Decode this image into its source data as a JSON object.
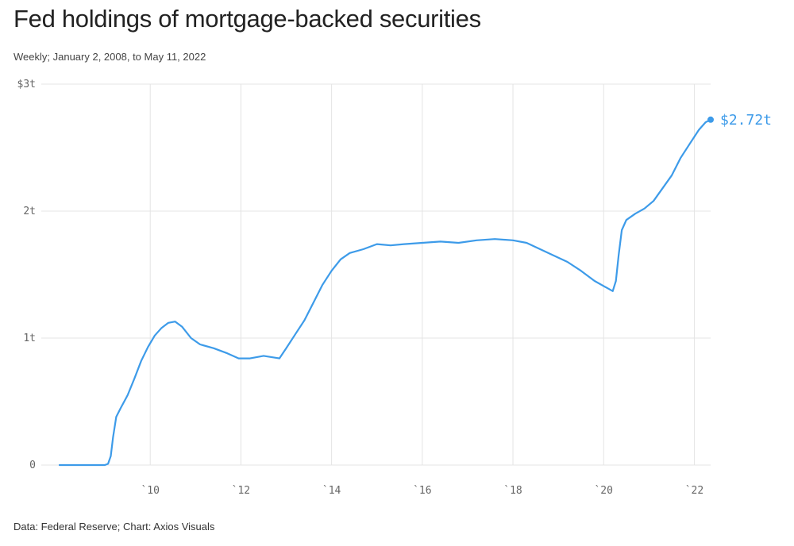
{
  "header": {
    "title": "Fed holdings of mortgage-backed securities",
    "subtitle": "Weekly; January 2, 2008, to May 11, 2022"
  },
  "footer": {
    "source": "Data: Federal Reserve; Chart: Axios Visuals"
  },
  "colors": {
    "line": "#3d9be9",
    "grid": "#e4e4e4",
    "text": "#222222"
  },
  "chart_data": {
    "type": "line",
    "title": "Fed holdings of mortgage-backed securities",
    "subtitle": "Weekly; January 2, 2008, to May 11, 2022",
    "xlabel": "",
    "ylabel": "",
    "units": "trillions of dollars",
    "xlim": [
      2008,
      2022.36
    ],
    "ylim": [
      0,
      3
    ],
    "grid": true,
    "legend": "none",
    "y_ticks": [
      {
        "value": 0,
        "label": "0"
      },
      {
        "value": 1,
        "label": "1t"
      },
      {
        "value": 2,
        "label": "2t"
      },
      {
        "value": 3,
        "label": "$3t"
      }
    ],
    "x_ticks": [
      {
        "value": 2010,
        "label": "`10"
      },
      {
        "value": 2012,
        "label": "`12"
      },
      {
        "value": 2014,
        "label": "`14"
      },
      {
        "value": 2016,
        "label": "`16"
      },
      {
        "value": 2018,
        "label": "`18"
      },
      {
        "value": 2020,
        "label": "`20"
      },
      {
        "value": 2022,
        "label": "`22"
      }
    ],
    "end_label": "$2.72t",
    "series": [
      {
        "values": [
          [
            2008.0,
            0
          ],
          [
            2008.5,
            0
          ],
          [
            2009.0,
            0
          ],
          [
            2009.07,
            0.01
          ],
          [
            2009.13,
            0.07
          ],
          [
            2009.18,
            0.22
          ],
          [
            2009.25,
            0.38
          ],
          [
            2009.35,
            0.45
          ],
          [
            2009.5,
            0.55
          ],
          [
            2009.65,
            0.68
          ],
          [
            2009.8,
            0.82
          ],
          [
            2009.95,
            0.93
          ],
          [
            2010.1,
            1.02
          ],
          [
            2010.25,
            1.08
          ],
          [
            2010.4,
            1.12
          ],
          [
            2010.55,
            1.13
          ],
          [
            2010.7,
            1.09
          ],
          [
            2010.9,
            1.0
          ],
          [
            2011.1,
            0.95
          ],
          [
            2011.4,
            0.92
          ],
          [
            2011.7,
            0.88
          ],
          [
            2011.95,
            0.84
          ],
          [
            2012.2,
            0.84
          ],
          [
            2012.5,
            0.86
          ],
          [
            2012.85,
            0.84
          ],
          [
            2013.0,
            0.92
          ],
          [
            2013.2,
            1.03
          ],
          [
            2013.4,
            1.14
          ],
          [
            2013.6,
            1.28
          ],
          [
            2013.8,
            1.42
          ],
          [
            2014.0,
            1.53
          ],
          [
            2014.2,
            1.62
          ],
          [
            2014.4,
            1.67
          ],
          [
            2014.7,
            1.7
          ],
          [
            2015.0,
            1.74
          ],
          [
            2015.3,
            1.73
          ],
          [
            2015.6,
            1.74
          ],
          [
            2016.0,
            1.75
          ],
          [
            2016.4,
            1.76
          ],
          [
            2016.8,
            1.75
          ],
          [
            2017.2,
            1.77
          ],
          [
            2017.6,
            1.78
          ],
          [
            2018.0,
            1.77
          ],
          [
            2018.3,
            1.75
          ],
          [
            2018.6,
            1.7
          ],
          [
            2018.9,
            1.65
          ],
          [
            2019.2,
            1.6
          ],
          [
            2019.5,
            1.53
          ],
          [
            2019.8,
            1.45
          ],
          [
            2020.1,
            1.39
          ],
          [
            2020.2,
            1.37
          ],
          [
            2020.27,
            1.45
          ],
          [
            2020.33,
            1.65
          ],
          [
            2020.4,
            1.85
          ],
          [
            2020.5,
            1.93
          ],
          [
            2020.7,
            1.98
          ],
          [
            2020.9,
            2.02
          ],
          [
            2021.1,
            2.08
          ],
          [
            2021.3,
            2.18
          ],
          [
            2021.5,
            2.28
          ],
          [
            2021.7,
            2.42
          ],
          [
            2021.9,
            2.53
          ],
          [
            2022.1,
            2.64
          ],
          [
            2022.25,
            2.7
          ],
          [
            2022.36,
            2.72
          ]
        ]
      }
    ]
  }
}
